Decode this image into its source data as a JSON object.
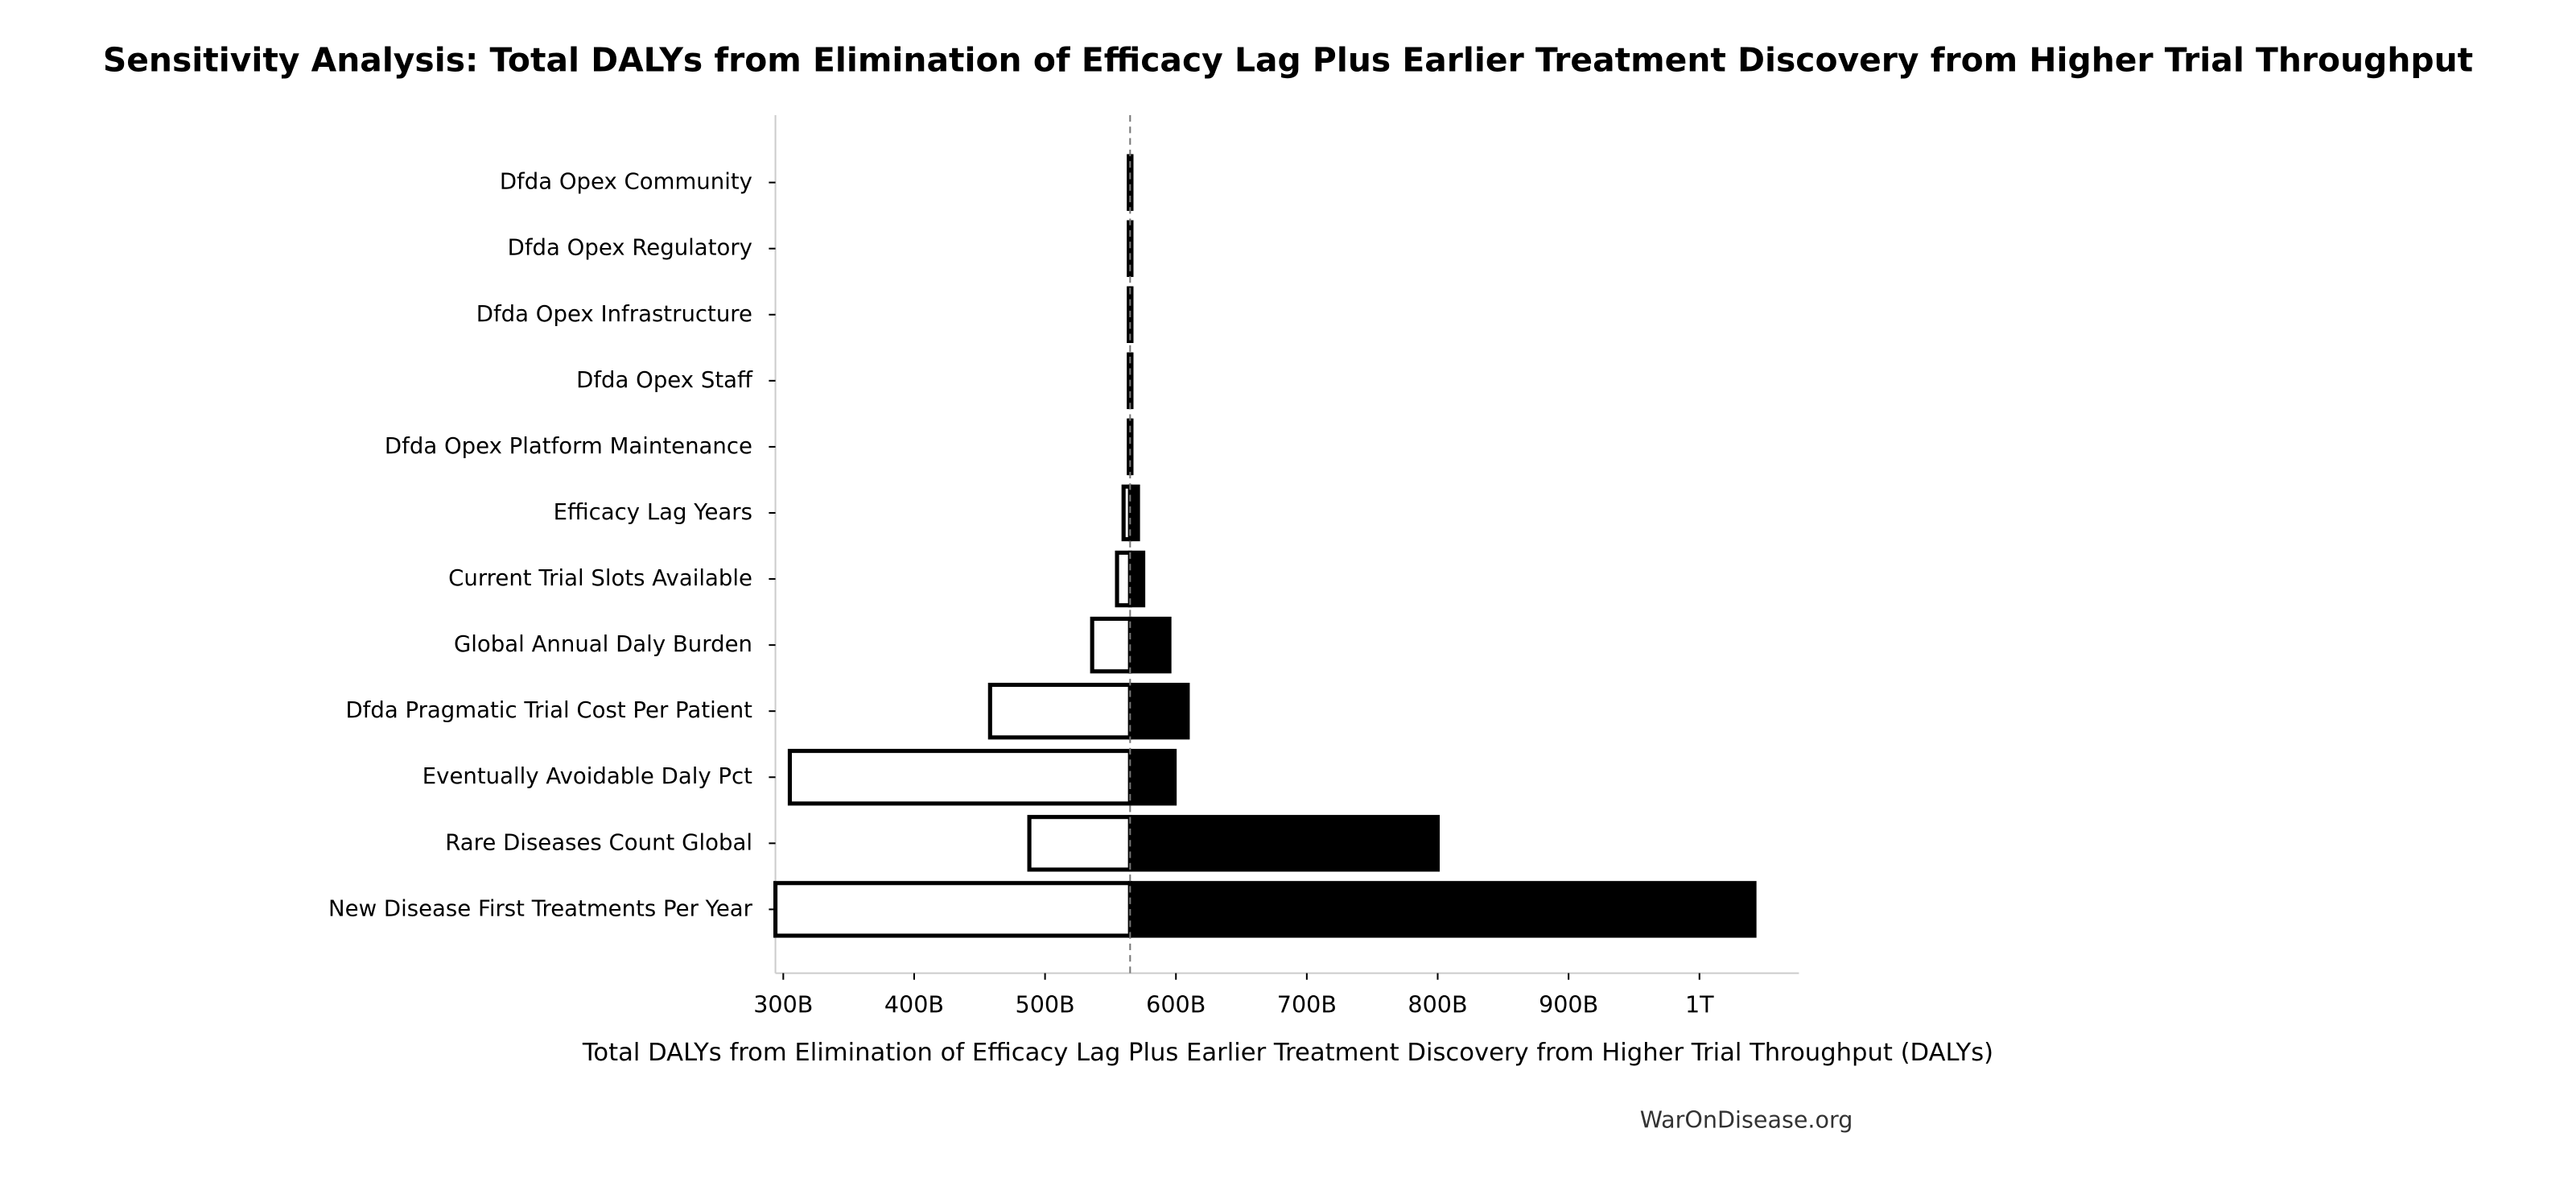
{
  "chart_data": {
    "type": "tornado",
    "title": "Sensitivity Analysis: Total DALYs from Elimination of Efficacy Lag Plus Earlier Treatment Discovery from Higher Trial Throughput",
    "x_label": "Total DALYs from Elimination of Efficacy Lag Plus Earlier Treatment Discovery from Higher Trial Throughput (DALYs)",
    "source": "WarOnDisease.org",
    "categories": [
      "Dfda Opex Community",
      "Dfda Opex Regulatory",
      "Dfda Opex Infrastructure",
      "Dfda Opex Staff",
      "Dfda Opex Platform Maintenance",
      "Efficacy Lag Years",
      "Current Trial Slots Available",
      "Global Annual Daly Burden",
      "Dfda Pragmatic Trial Cost Per Patient",
      "Eventually Avoidable Daly Pct",
      "Rare Diseases Count Global",
      "New Disease First Treatments Per Year"
    ],
    "low": [
      564000000000,
      564000000000,
      564000000000,
      564000000000,
      564000000000,
      560000000000,
      555000000000,
      536000000000,
      458000000000,
      305000000000,
      488000000000,
      294000000000
    ],
    "high": [
      566000000000,
      566000000000,
      566000000000,
      566000000000,
      566000000000,
      571000000000,
      575000000000,
      595000000000,
      609000000000,
      599000000000,
      800000000000,
      1042000000000
    ],
    "baseline": 565000000000,
    "low_color": "#ffffff",
    "high_color": "#000000",
    "xlim": [
      294000000000,
      1076000000000
    ],
    "xticks": [
      {
        "value": 300000000000,
        "label": "300B"
      },
      {
        "value": 400000000000,
        "label": "400B"
      },
      {
        "value": 500000000000,
        "label": "500B"
      },
      {
        "value": 600000000000,
        "label": "600B"
      },
      {
        "value": 700000000000,
        "label": "700B"
      },
      {
        "value": 800000000000,
        "label": "800B"
      },
      {
        "value": 900000000000,
        "label": "900B"
      },
      {
        "value": 1000000000000,
        "label": "1T"
      }
    ]
  }
}
